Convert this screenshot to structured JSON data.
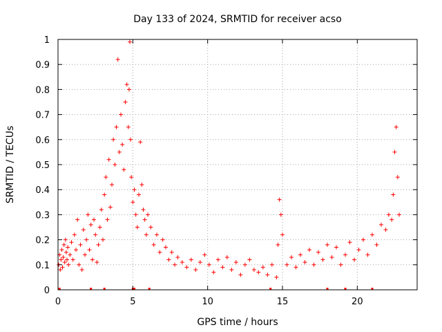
{
  "chart_data": {
    "type": "scatter",
    "title": "Day 133 of 2024, SRMTID for receiver acso",
    "xlabel": "GPS time / hours",
    "ylabel": "SRMTID / TECUs",
    "xlim": [
      0,
      24
    ],
    "ylim": [
      0,
      1
    ],
    "xticks": [
      0,
      5,
      10,
      15,
      20
    ],
    "xtick_labels": [
      "0",
      "5",
      "10",
      "15",
      "20"
    ],
    "yticks": [
      0,
      0.1,
      0.2,
      0.3,
      0.4,
      0.5,
      0.6,
      0.7,
      0.8,
      0.9,
      1
    ],
    "ytick_labels": [
      "0",
      "0.1",
      "0.2",
      "0.3",
      "0.4",
      "0.5",
      "0.6",
      "0.7",
      "0.8",
      "0.9",
      "1"
    ],
    "grid": true,
    "marker": "+",
    "color": "#ff0000",
    "series": [
      {
        "name": "SRMTID",
        "x": [
          0.05,
          0.1,
          0.15,
          0.2,
          0.25,
          0.3,
          0.35,
          0.4,
          0.45,
          0.5,
          0.55,
          0.6,
          0.65,
          0.7,
          0.8,
          0.9,
          1.0,
          1.1,
          1.2,
          1.3,
          1.4,
          1.5,
          1.6,
          1.7,
          1.8,
          1.9,
          2.0,
          2.1,
          2.2,
          2.3,
          2.4,
          2.5,
          2.6,
          2.7,
          2.8,
          2.9,
          3.0,
          3.1,
          3.2,
          3.3,
          3.4,
          3.5,
          3.6,
          3.7,
          3.8,
          3.9,
          4.0,
          4.1,
          4.2,
          4.3,
          4.4,
          4.5,
          4.6,
          4.7,
          4.75,
          4.8,
          4.85,
          4.9,
          5.0,
          5.1,
          5.2,
          5.3,
          5.4,
          5.5,
          5.6,
          5.7,
          5.8,
          5.9,
          6.0,
          6.2,
          6.4,
          6.6,
          6.8,
          7.0,
          7.2,
          7.4,
          7.6,
          7.8,
          8.0,
          8.3,
          8.6,
          8.9,
          9.2,
          9.5,
          9.8,
          10.1,
          10.4,
          10.7,
          11.0,
          11.3,
          11.6,
          11.9,
          12.2,
          12.5,
          12.8,
          13.1,
          13.4,
          13.7,
          14.0,
          14.3,
          14.6,
          14.7,
          14.8,
          14.9,
          15.0,
          15.3,
          15.6,
          15.9,
          16.2,
          16.5,
          16.8,
          17.1,
          17.4,
          17.7,
          18.0,
          18.3,
          18.6,
          18.9,
          19.2,
          19.5,
          19.8,
          20.1,
          20.4,
          20.7,
          21.0,
          21.3,
          21.6,
          21.9,
          22.1,
          22.3,
          22.4,
          22.5,
          22.6,
          22.7,
          22.8
        ],
        "values": [
          0.1,
          0.14,
          0.08,
          0.12,
          0.16,
          0.09,
          0.13,
          0.18,
          0.11,
          0.2,
          0.15,
          0.12,
          0.17,
          0.1,
          0.14,
          0.19,
          0.12,
          0.22,
          0.16,
          0.28,
          0.1,
          0.18,
          0.08,
          0.24,
          0.14,
          0.2,
          0.3,
          0.16,
          0.26,
          0.12,
          0.28,
          0.22,
          0.11,
          0.18,
          0.25,
          0.32,
          0.2,
          0.38,
          0.45,
          0.28,
          0.52,
          0.33,
          0.42,
          0.6,
          0.5,
          0.65,
          0.92,
          0.55,
          0.7,
          0.58,
          0.48,
          0.75,
          0.82,
          0.65,
          0.8,
          0.99,
          0.6,
          0.45,
          0.35,
          0.4,
          0.3,
          0.25,
          0.38,
          0.59,
          0.42,
          0.32,
          0.28,
          0.22,
          0.3,
          0.25,
          0.18,
          0.22,
          0.15,
          0.2,
          0.17,
          0.12,
          0.15,
          0.1,
          0.13,
          0.11,
          0.09,
          0.12,
          0.08,
          0.11,
          0.14,
          0.1,
          0.07,
          0.12,
          0.09,
          0.13,
          0.08,
          0.11,
          0.06,
          0.1,
          0.12,
          0.08,
          0.07,
          0.09,
          0.06,
          0.1,
          0.05,
          0.18,
          0.36,
          0.3,
          0.22,
          0.1,
          0.13,
          0.09,
          0.14,
          0.11,
          0.16,
          0.1,
          0.15,
          0.12,
          0.18,
          0.13,
          0.17,
          0.1,
          0.14,
          0.19,
          0.12,
          0.16,
          0.2,
          0.14,
          0.22,
          0.18,
          0.26,
          0.24,
          0.3,
          0.28,
          0.38,
          0.55,
          0.65,
          0.45,
          0.3
        ]
      }
    ],
    "bottom_markers_x": [
      0.1,
      2.2,
      3.1,
      5.0,
      5.1,
      6.1,
      14.2,
      18.0,
      19.2,
      21.0
    ]
  }
}
